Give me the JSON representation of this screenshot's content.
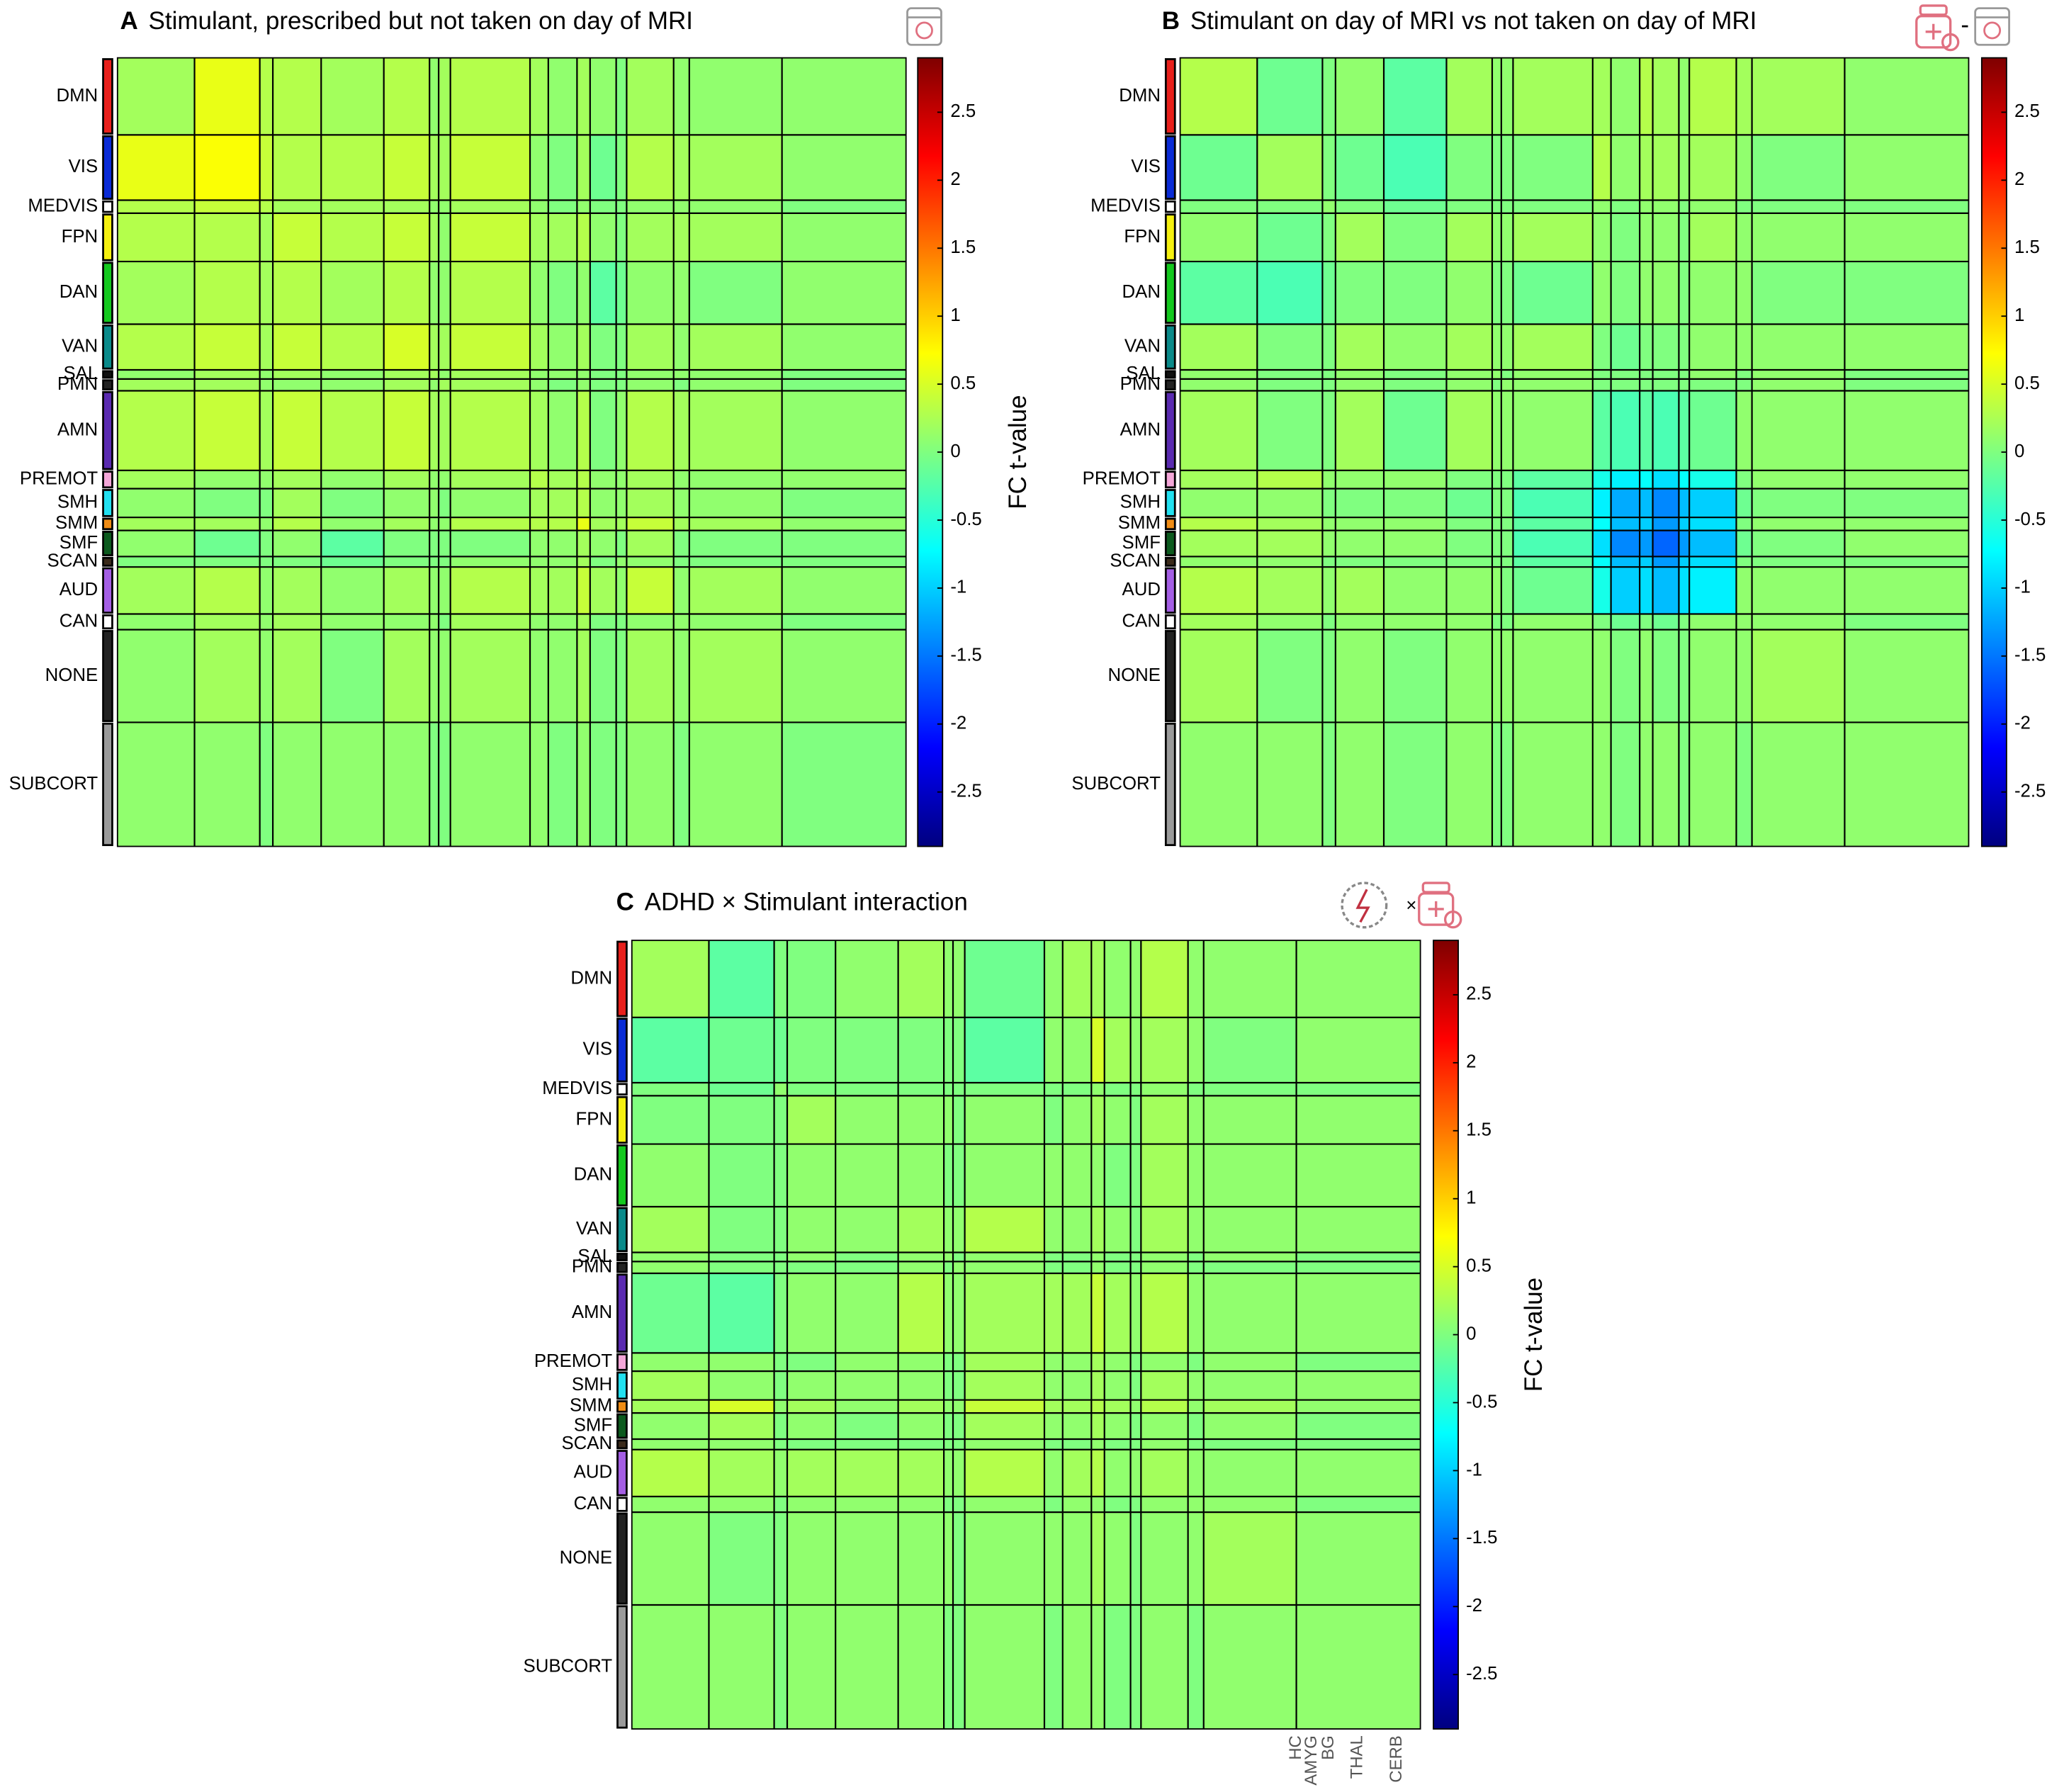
{
  "chart_data": [
    {
      "type": "heatmap",
      "label": "A",
      "title": "Stimulant, prescribed but not taken on day of MRI",
      "colormap": "jet",
      "categories": [
        "DMN",
        "VIS",
        "MEDVIS",
        "FPN",
        "DAN",
        "VAN",
        "SAL",
        "PMN",
        "AMN",
        "PREMOT",
        "SMH",
        "SMM",
        "SMF",
        "SCAN",
        "AUD",
        "CAN",
        "NONE",
        "SUBCORT"
      ],
      "colors": [
        "#e8201c",
        "#0a2bd6",
        "#ffffff",
        "#f5f010",
        "#14c81e",
        "#0a8a8a",
        "#111111",
        "#222222",
        "#5a2ab0",
        "#f4a6d8",
        "#22e0f0",
        "#f08c14",
        "#0c5a1e",
        "#3a2a1a",
        "#a45ee4",
        "#ffffff",
        "#222222",
        "#9a9a9a"
      ],
      "values": [
        [
          0.2,
          0.6,
          0.3,
          0.3,
          0.2,
          0.3,
          0.1,
          0.2,
          0.3,
          0.2,
          0.1,
          0.2,
          0.1,
          0.0,
          0.2,
          0.1,
          0.1,
          0.1
        ],
        [
          0.6,
          0.7,
          0.4,
          0.3,
          0.3,
          0.4,
          0.2,
          0.2,
          0.4,
          0.1,
          0.0,
          0.2,
          -0.1,
          0.0,
          0.3,
          0.2,
          0.2,
          0.1
        ],
        [
          0.3,
          0.4,
          0.3,
          0.2,
          0.2,
          0.2,
          0.1,
          0.1,
          0.2,
          0.1,
          0.0,
          0.1,
          0.0,
          0.0,
          0.1,
          0.1,
          0.1,
          0.0
        ],
        [
          0.3,
          0.3,
          0.2,
          0.4,
          0.3,
          0.4,
          0.2,
          0.1,
          0.4,
          0.2,
          0.2,
          0.3,
          0.1,
          0.0,
          0.2,
          0.2,
          0.2,
          0.1
        ],
        [
          0.2,
          0.3,
          0.2,
          0.3,
          0.2,
          0.3,
          0.1,
          0.1,
          0.3,
          0.1,
          0.0,
          0.1,
          -0.2,
          -0.1,
          0.1,
          0.1,
          0.0,
          0.1
        ],
        [
          0.3,
          0.4,
          0.2,
          0.4,
          0.3,
          0.5,
          0.2,
          0.2,
          0.4,
          0.2,
          0.1,
          0.2,
          0.0,
          0.0,
          0.2,
          0.1,
          0.2,
          0.1
        ],
        [
          0.1,
          0.2,
          0.1,
          0.2,
          0.1,
          0.2,
          0.2,
          0.1,
          0.2,
          0.1,
          0.1,
          0.1,
          0.0,
          0.0,
          0.1,
          0.1,
          0.1,
          0.0
        ],
        [
          0.2,
          0.2,
          0.1,
          0.1,
          0.1,
          0.2,
          0.1,
          0.2,
          0.2,
          0.1,
          0.0,
          0.1,
          0.0,
          0.0,
          0.1,
          0.0,
          0.1,
          0.0
        ],
        [
          0.3,
          0.4,
          0.2,
          0.4,
          0.3,
          0.4,
          0.2,
          0.2,
          0.3,
          0.2,
          0.1,
          0.3,
          0.0,
          0.1,
          0.3,
          0.2,
          0.2,
          0.1
        ],
        [
          0.2,
          0.1,
          0.1,
          0.2,
          0.1,
          0.2,
          0.1,
          0.1,
          0.2,
          0.3,
          0.2,
          0.3,
          0.1,
          0.1,
          0.2,
          0.1,
          0.1,
          0.1
        ],
        [
          0.1,
          0.0,
          0.0,
          0.2,
          0.0,
          0.1,
          0.1,
          0.0,
          0.1,
          0.2,
          0.2,
          0.3,
          0.1,
          0.1,
          0.2,
          0.1,
          0.1,
          0.0
        ],
        [
          0.2,
          0.2,
          0.1,
          0.3,
          0.1,
          0.2,
          0.1,
          0.1,
          0.3,
          0.3,
          0.3,
          0.6,
          0.2,
          0.2,
          0.4,
          0.2,
          0.2,
          0.1
        ],
        [
          0.1,
          -0.1,
          0.0,
          0.1,
          -0.2,
          0.0,
          0.0,
          0.0,
          0.0,
          0.1,
          0.1,
          0.2,
          0.1,
          0.0,
          0.2,
          0.0,
          0.0,
          0.0
        ],
        [
          0.0,
          0.0,
          0.0,
          0.0,
          -0.1,
          0.0,
          0.0,
          0.0,
          0.1,
          0.1,
          0.1,
          0.2,
          0.0,
          0.1,
          0.1,
          0.0,
          0.0,
          0.0
        ],
        [
          0.2,
          0.3,
          0.1,
          0.2,
          0.1,
          0.2,
          0.1,
          0.1,
          0.3,
          0.2,
          0.2,
          0.4,
          0.2,
          0.1,
          0.4,
          0.1,
          0.2,
          0.1
        ],
        [
          0.1,
          0.2,
          0.1,
          0.2,
          0.1,
          0.1,
          0.1,
          0.0,
          0.2,
          0.1,
          0.1,
          0.2,
          0.0,
          0.0,
          0.1,
          0.1,
          0.1,
          0.0
        ],
        [
          0.1,
          0.2,
          0.1,
          0.2,
          0.0,
          0.2,
          0.1,
          0.1,
          0.2,
          0.1,
          0.1,
          0.2,
          0.0,
          0.0,
          0.2,
          0.1,
          0.2,
          0.1
        ],
        [
          0.1,
          0.1,
          0.0,
          0.1,
          0.1,
          0.1,
          0.0,
          0.0,
          0.1,
          0.1,
          0.0,
          0.1,
          0.0,
          0.0,
          0.1,
          0.0,
          0.1,
          0.0
        ]
      ],
      "clim": [
        -2.9,
        2.9
      ],
      "cticks": [
        -2.5,
        -2,
        -1.5,
        -1,
        -0.5,
        0,
        0.5,
        1,
        1.5,
        2,
        2.5
      ],
      "colorbar_label": "FC t-value"
    },
    {
      "type": "heatmap",
      "label": "B",
      "title": "Stimulant on day of MRI vs not taken on day of MRI",
      "colormap": "jet",
      "categories": [
        "DMN",
        "VIS",
        "MEDVIS",
        "FPN",
        "DAN",
        "VAN",
        "SAL",
        "PMN",
        "AMN",
        "PREMOT",
        "SMH",
        "SMM",
        "SMF",
        "SCAN",
        "AUD",
        "CAN",
        "NONE",
        "SUBCORT"
      ],
      "colors": [
        "#e8201c",
        "#0a2bd6",
        "#ffffff",
        "#f5f010",
        "#14c81e",
        "#0a8a8a",
        "#111111",
        "#222222",
        "#5a2ab0",
        "#f4a6d8",
        "#22e0f0",
        "#f08c14",
        "#0c5a1e",
        "#3a2a1a",
        "#a45ee4",
        "#ffffff",
        "#222222",
        "#9a9a9a"
      ],
      "values": [
        [
          0.3,
          -0.1,
          0.0,
          0.1,
          -0.2,
          0.2,
          0.1,
          0.1,
          0.2,
          0.2,
          0.1,
          0.3,
          0.2,
          0.1,
          0.3,
          0.2,
          0.2,
          0.1
        ],
        [
          -0.1,
          0.2,
          0.0,
          -0.1,
          -0.3,
          0.0,
          0.0,
          0.0,
          0.0,
          0.3,
          0.1,
          0.2,
          0.2,
          0.1,
          0.2,
          0.1,
          0.0,
          0.1
        ],
        [
          0.0,
          0.0,
          0.1,
          0.0,
          -0.1,
          0.0,
          0.0,
          0.0,
          0.0,
          0.1,
          0.0,
          0.1,
          0.1,
          0.0,
          0.1,
          0.0,
          0.0,
          0.0
        ],
        [
          0.1,
          -0.1,
          0.0,
          0.2,
          0.0,
          0.2,
          0.1,
          0.1,
          0.2,
          0.1,
          0.0,
          0.1,
          0.1,
          0.0,
          0.2,
          0.1,
          0.1,
          0.1
        ],
        [
          -0.2,
          -0.3,
          -0.1,
          0.0,
          0.0,
          0.1,
          0.0,
          0.0,
          -0.1,
          0.1,
          0.0,
          0.1,
          0.1,
          0.0,
          0.1,
          0.1,
          0.0,
          0.0
        ],
        [
          0.2,
          0.0,
          0.0,
          0.2,
          0.1,
          0.2,
          0.1,
          0.1,
          0.2,
          0.0,
          -0.1,
          0.0,
          0.0,
          0.0,
          0.1,
          0.1,
          0.1,
          0.1
        ],
        [
          0.1,
          0.0,
          0.0,
          0.1,
          0.0,
          0.1,
          0.1,
          0.0,
          0.1,
          0.0,
          0.0,
          0.0,
          0.0,
          0.0,
          0.1,
          0.0,
          0.1,
          0.0
        ],
        [
          0.1,
          0.0,
          0.0,
          0.1,
          0.0,
          0.1,
          0.0,
          0.1,
          0.1,
          0.0,
          0.0,
          0.0,
          0.0,
          0.0,
          0.0,
          0.0,
          0.1,
          0.0
        ],
        [
          0.2,
          0.0,
          0.0,
          0.2,
          -0.1,
          0.2,
          0.1,
          0.1,
          0.1,
          -0.2,
          -0.3,
          -0.2,
          -0.3,
          -0.2,
          -0.1,
          0.1,
          0.1,
          0.1
        ],
        [
          0.2,
          0.3,
          0.1,
          0.1,
          0.1,
          0.0,
          0.0,
          0.0,
          -0.2,
          -0.6,
          -0.8,
          -0.7,
          -0.9,
          -0.7,
          -0.6,
          0.0,
          0.1,
          0.1
        ],
        [
          0.1,
          0.1,
          0.0,
          0.0,
          0.0,
          -0.1,
          0.0,
          0.0,
          -0.3,
          -0.8,
          -1.2,
          -1.1,
          -1.4,
          -1.1,
          -1.0,
          -0.1,
          0.0,
          0.0
        ],
        [
          0.3,
          0.2,
          0.1,
          0.1,
          0.1,
          0.0,
          0.0,
          0.0,
          -0.2,
          -0.7,
          -1.1,
          -1.0,
          -1.3,
          -1.0,
          -0.9,
          0.0,
          0.1,
          0.1
        ],
        [
          0.2,
          0.2,
          0.1,
          0.1,
          0.1,
          0.0,
          0.0,
          0.0,
          -0.3,
          -0.9,
          -1.4,
          -1.3,
          -1.6,
          -1.3,
          -1.1,
          -0.1,
          0.0,
          0.1
        ],
        [
          0.1,
          0.1,
          0.0,
          0.0,
          0.0,
          0.0,
          0.0,
          0.0,
          -0.2,
          -0.7,
          -1.1,
          -1.0,
          -1.3,
          -1.0,
          -0.9,
          0.0,
          0.0,
          0.0
        ],
        [
          0.3,
          0.2,
          0.1,
          0.2,
          0.1,
          0.1,
          0.1,
          0.0,
          -0.1,
          -0.6,
          -1.0,
          -0.9,
          -1.1,
          -0.9,
          -0.8,
          0.1,
          0.1,
          0.1
        ],
        [
          0.2,
          0.1,
          0.0,
          0.1,
          0.1,
          0.1,
          0.0,
          0.0,
          0.1,
          0.0,
          -0.1,
          0.0,
          -0.1,
          0.0,
          0.1,
          0.1,
          0.1,
          0.0
        ],
        [
          0.2,
          0.0,
          0.0,
          0.1,
          0.0,
          0.1,
          0.1,
          0.1,
          0.1,
          0.1,
          0.0,
          0.1,
          0.0,
          0.0,
          0.1,
          0.1,
          0.2,
          0.1
        ],
        [
          0.1,
          0.1,
          0.0,
          0.1,
          0.0,
          0.1,
          0.0,
          0.0,
          0.1,
          0.1,
          0.0,
          0.1,
          0.1,
          0.0,
          0.1,
          0.0,
          0.1,
          0.1
        ]
      ],
      "clim": [
        -2.9,
        2.9
      ],
      "cticks": [
        -2.5,
        -2,
        -1.5,
        -1,
        -0.5,
        0,
        0.5,
        1,
        1.5,
        2,
        2.5
      ]
    },
    {
      "type": "heatmap",
      "label": "C",
      "title": "ADHD × Stimulant interaction",
      "colormap": "jet",
      "categories": [
        "DMN",
        "VIS",
        "MEDVIS",
        "FPN",
        "DAN",
        "VAN",
        "SAL",
        "PMN",
        "AMN",
        "PREMOT",
        "SMH",
        "SMM",
        "SMF",
        "SCAN",
        "AUD",
        "CAN",
        "NONE",
        "SUBCORT"
      ],
      "colors": [
        "#e8201c",
        "#0a2bd6",
        "#ffffff",
        "#f5f010",
        "#14c81e",
        "#0a8a8a",
        "#111111",
        "#222222",
        "#5a2ab0",
        "#f4a6d8",
        "#22e0f0",
        "#f08c14",
        "#0c5a1e",
        "#3a2a1a",
        "#a45ee4",
        "#ffffff",
        "#222222",
        "#9a9a9a"
      ],
      "values": [
        [
          0.2,
          -0.2,
          0.0,
          0.0,
          0.1,
          0.2,
          0.1,
          0.1,
          -0.1,
          0.1,
          0.2,
          0.2,
          0.1,
          0.1,
          0.3,
          0.1,
          0.1,
          0.1
        ],
        [
          -0.2,
          -0.1,
          -0.1,
          0.0,
          0.0,
          0.0,
          0.0,
          0.0,
          -0.2,
          0.1,
          0.1,
          0.5,
          0.2,
          0.1,
          0.2,
          0.1,
          0.0,
          0.1
        ],
        [
          0.0,
          -0.1,
          0.1,
          0.0,
          0.0,
          0.0,
          0.0,
          0.0,
          0.0,
          0.0,
          0.0,
          0.1,
          0.0,
          0.0,
          0.1,
          0.0,
          0.0,
          0.0
        ],
        [
          0.0,
          0.0,
          0.0,
          0.2,
          0.1,
          0.1,
          0.1,
          0.0,
          0.1,
          0.0,
          0.1,
          0.2,
          0.1,
          0.0,
          0.2,
          0.1,
          0.1,
          0.1
        ],
        [
          0.1,
          0.0,
          0.0,
          0.1,
          0.1,
          0.1,
          0.0,
          0.0,
          0.1,
          0.1,
          0.1,
          0.1,
          0.0,
          0.0,
          0.2,
          0.1,
          0.1,
          0.1
        ],
        [
          0.2,
          0.0,
          0.0,
          0.1,
          0.1,
          0.2,
          0.1,
          0.1,
          0.3,
          0.1,
          0.1,
          0.2,
          0.1,
          0.0,
          0.2,
          0.1,
          0.1,
          0.1
        ],
        [
          0.1,
          0.0,
          0.0,
          0.1,
          0.0,
          0.1,
          0.1,
          0.0,
          0.1,
          0.0,
          0.0,
          0.1,
          0.0,
          0.0,
          0.1,
          0.0,
          0.1,
          0.0
        ],
        [
          0.1,
          0.0,
          0.0,
          0.0,
          0.0,
          0.1,
          0.0,
          0.1,
          0.1,
          0.0,
          0.0,
          0.1,
          0.0,
          0.0,
          0.1,
          0.0,
          0.0,
          0.0
        ],
        [
          -0.1,
          -0.2,
          0.0,
          0.1,
          0.1,
          0.3,
          0.1,
          0.1,
          0.2,
          0.2,
          0.2,
          0.4,
          0.2,
          0.1,
          0.3,
          0.1,
          0.1,
          0.1
        ],
        [
          0.1,
          0.1,
          0.0,
          0.0,
          0.1,
          0.1,
          0.0,
          0.0,
          0.2,
          0.1,
          0.1,
          0.2,
          0.1,
          0.0,
          0.1,
          0.0,
          0.1,
          0.0
        ],
        [
          0.2,
          0.1,
          0.0,
          0.1,
          0.1,
          0.1,
          0.0,
          0.0,
          0.2,
          0.1,
          0.1,
          0.2,
          0.1,
          0.0,
          0.2,
          0.1,
          0.1,
          0.1
        ],
        [
          0.2,
          0.5,
          0.1,
          0.2,
          0.1,
          0.2,
          0.1,
          0.1,
          0.4,
          0.2,
          0.2,
          0.3,
          0.2,
          0.1,
          0.3,
          0.1,
          0.2,
          0.1
        ],
        [
          0.1,
          0.2,
          0.0,
          0.1,
          0.0,
          0.1,
          0.0,
          0.0,
          0.2,
          0.1,
          0.1,
          0.2,
          0.1,
          0.0,
          0.1,
          0.0,
          0.1,
          0.0
        ],
        [
          0.1,
          0.1,
          0.0,
          0.0,
          0.0,
          0.0,
          0.0,
          0.0,
          0.1,
          0.0,
          0.0,
          0.1,
          0.0,
          0.0,
          0.1,
          0.0,
          0.0,
          0.0
        ],
        [
          0.3,
          0.2,
          0.1,
          0.2,
          0.2,
          0.2,
          0.1,
          0.1,
          0.3,
          0.1,
          0.2,
          0.3,
          0.1,
          0.1,
          0.2,
          0.1,
          0.1,
          0.1
        ],
        [
          0.1,
          0.1,
          0.0,
          0.1,
          0.1,
          0.1,
          0.0,
          0.0,
          0.1,
          0.0,
          0.1,
          0.1,
          0.0,
          0.0,
          0.1,
          0.1,
          0.1,
          0.0
        ],
        [
          0.1,
          0.0,
          0.0,
          0.1,
          0.1,
          0.1,
          0.1,
          0.0,
          0.1,
          0.1,
          0.1,
          0.2,
          0.1,
          0.0,
          0.1,
          0.1,
          0.2,
          0.1
        ],
        [
          0.1,
          0.1,
          0.0,
          0.1,
          0.1,
          0.1,
          0.0,
          0.0,
          0.1,
          0.0,
          0.1,
          0.1,
          0.0,
          0.0,
          0.1,
          0.0,
          0.1,
          0.1
        ]
      ],
      "clim": [
        -2.9,
        2.9
      ],
      "cticks": [
        -2.5,
        -2,
        -1.5,
        -1,
        -0.5,
        0,
        0.5,
        1,
        1.5,
        2,
        2.5
      ],
      "colorbar_label": "FC t-value",
      "subcortical_labels": [
        "HC",
        "AMYG",
        "BG",
        "THAL",
        "CERB"
      ]
    }
  ]
}
